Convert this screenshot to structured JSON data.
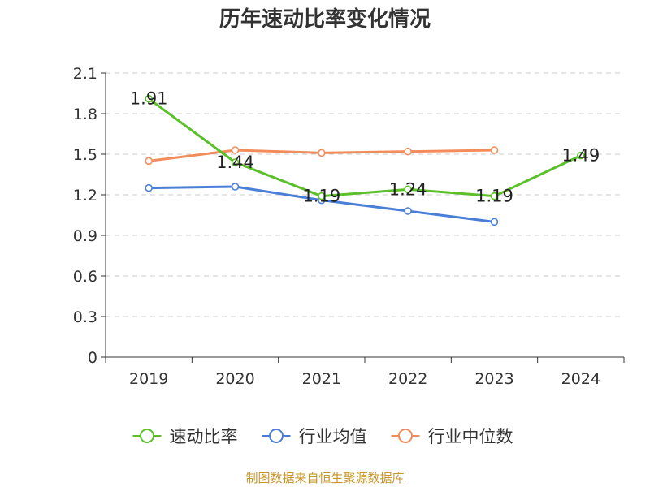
{
  "chart_data": {
    "type": "line",
    "title": "历年速动比率变化情况",
    "categories": [
      "2019",
      "2020",
      "2021",
      "2022",
      "2023",
      "2024"
    ],
    "series": [
      {
        "name": "速动比率",
        "values": [
          1.91,
          1.44,
          1.19,
          1.24,
          1.19,
          1.49
        ],
        "color": "#5bbf2a",
        "labels": true
      },
      {
        "name": "行业均值",
        "values": [
          1.25,
          1.26,
          1.16,
          1.08,
          1.0,
          null
        ],
        "color": "#4a7fd8",
        "labels": false
      },
      {
        "name": "行业中位数",
        "values": [
          1.45,
          1.53,
          1.51,
          1.52,
          1.53,
          null
        ],
        "color": "#f28c5a",
        "labels": false
      }
    ],
    "yticks": [
      "0",
      "0.3",
      "0.6",
      "0.9",
      "1.2",
      "1.5",
      "1.8",
      "2.1"
    ],
    "ylim": [
      0,
      2.1
    ],
    "xlabel": "",
    "ylabel": "",
    "grid": "horizontal-dashed",
    "legend_position": "bottom"
  },
  "source": "制图数据来自恒生聚源数据库"
}
